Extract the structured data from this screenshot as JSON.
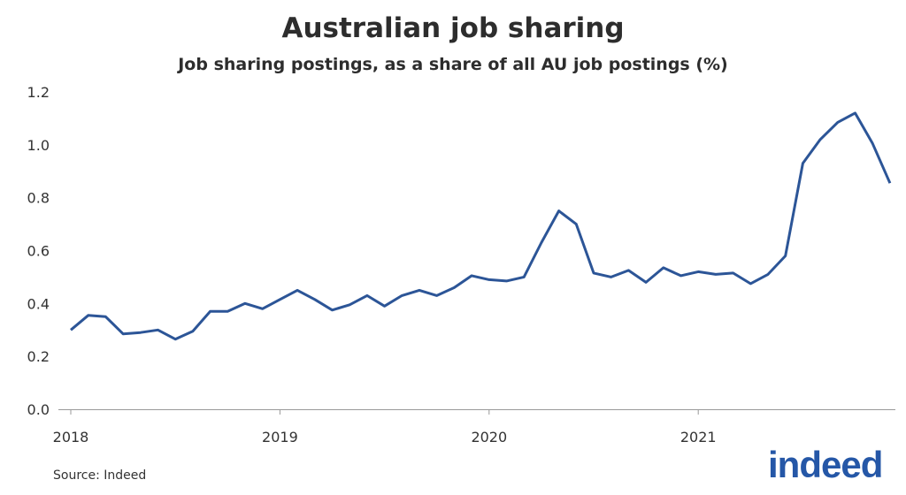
{
  "chart_data": {
    "type": "line",
    "title": "Australian job sharing",
    "subtitle": "Job sharing postings, as a share of all AU job postings (%)",
    "xlabel": "",
    "ylabel": "",
    "ylim": [
      0,
      1.2
    ],
    "yticks": [
      "0.0",
      "0.2",
      "0.4",
      "0.6",
      "0.8",
      "1.0",
      "1.2"
    ],
    "xticks": [
      "2018",
      "2019",
      "2020",
      "2021"
    ],
    "x_start": "2018-01",
    "x_frequency": "monthly",
    "grid": false,
    "line_color": "#2c5597",
    "values": [
      0.3,
      0.355,
      0.35,
      0.285,
      0.29,
      0.3,
      0.265,
      0.295,
      0.37,
      0.37,
      0.4,
      0.38,
      0.415,
      0.45,
      0.415,
      0.375,
      0.395,
      0.43,
      0.39,
      0.43,
      0.45,
      0.43,
      0.46,
      0.505,
      0.49,
      0.485,
      0.5,
      0.63,
      0.75,
      0.7,
      0.515,
      0.5,
      0.525,
      0.48,
      0.535,
      0.505,
      0.52,
      0.51,
      0.515,
      0.475,
      0.51,
      0.58,
      0.93,
      1.02,
      1.085,
      1.12,
      1.005,
      0.855
    ]
  },
  "source": "Source: Indeed",
  "logo_text": "indeed"
}
